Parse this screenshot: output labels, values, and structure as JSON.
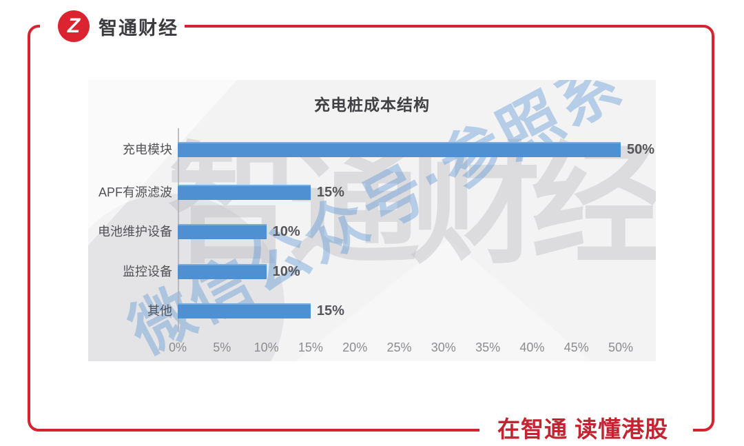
{
  "brand": {
    "name": "智通财经",
    "logo_glyph": "Z"
  },
  "slogan": "在智通  读懂港股",
  "watermarks": {
    "background": "智通财经",
    "diagonal": "微信公众号·参照系"
  },
  "colors": {
    "brand_red": "#d5232f",
    "slogan_red": "#c22531",
    "bar_blue": "#4e90d1",
    "panel_background": "#f3f3f4",
    "text_dark": "#3f3f44",
    "text_gray": "#8b8b91"
  },
  "chart_data": {
    "type": "bar",
    "orientation": "horizontal",
    "title": "充电桩成本结构",
    "categories": [
      "充电模块",
      "APF有源滤波",
      "电池维护设备",
      "监控设备",
      "其他"
    ],
    "values": [
      50,
      15,
      10,
      10,
      15
    ],
    "value_labels": [
      "50%",
      "15%",
      "10%",
      "10%",
      "15%"
    ],
    "x_ticks": [
      "0%",
      "5%",
      "10%",
      "15%",
      "20%",
      "25%",
      "30%",
      "35%",
      "40%",
      "45%",
      "50%"
    ],
    "xlabel": "",
    "ylabel": "",
    "xlim": [
      0,
      50
    ],
    "grid": false,
    "legend": false,
    "bar_color": "#4e90d1"
  }
}
